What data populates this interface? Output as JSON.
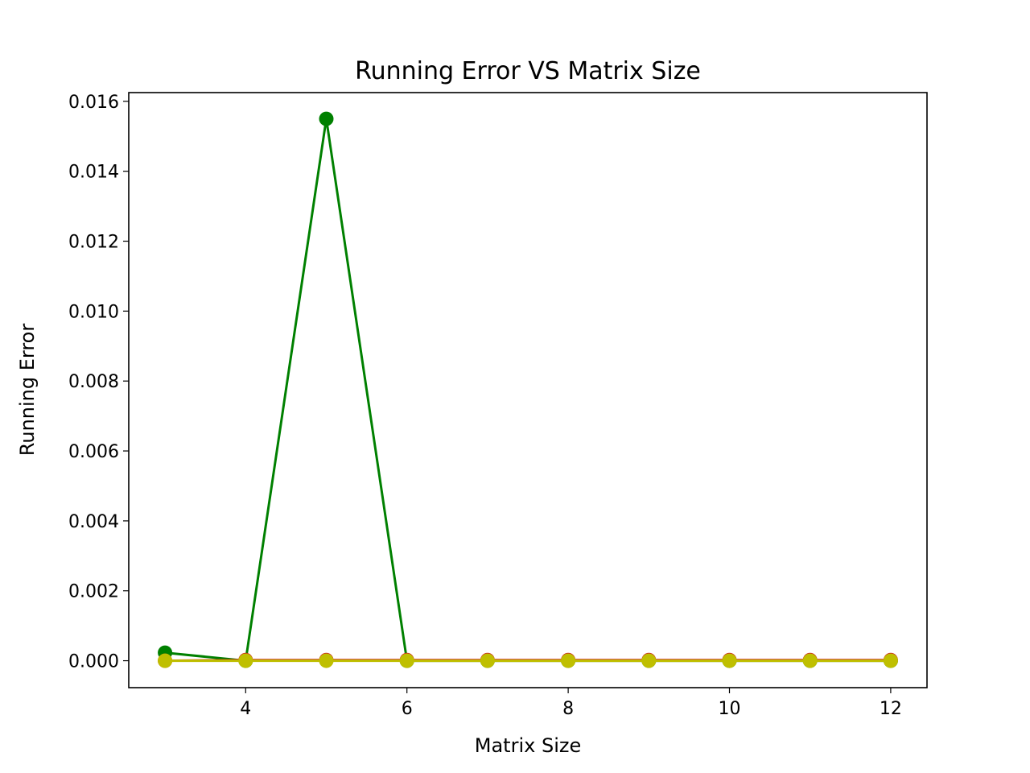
{
  "chart_data": {
    "type": "line",
    "title": "Running Error VS Matrix Size",
    "xlabel": "Matrix Size",
    "ylabel": "Running Error",
    "xlim": [
      2.55,
      12.45
    ],
    "ylim": [
      -0.00077,
      0.01625
    ],
    "xticks": [
      4,
      6,
      8,
      10,
      12
    ],
    "xtick_labels": [
      "4",
      "6",
      "8",
      "10",
      "12"
    ],
    "yticks": [
      0.0,
      0.002,
      0.004,
      0.006,
      0.008,
      0.01,
      0.012,
      0.014,
      0.016
    ],
    "ytick_labels": [
      "0.000",
      "0.002",
      "0.004",
      "0.006",
      "0.008",
      "0.010",
      "0.012",
      "0.014",
      "0.016"
    ],
    "grid": false,
    "legend": false,
    "x": [
      3,
      4,
      5,
      6,
      7,
      8,
      9,
      10,
      11,
      12
    ],
    "series": [
      {
        "color": "#008000",
        "marker": "circle",
        "values": [
          0.00023,
          0.0,
          0.0155,
          0.0,
          0.0,
          0.0,
          0.0,
          0.0,
          0.0,
          0.0
        ]
      },
      {
        "color": "#cc2a1a",
        "marker": "circle",
        "values": [
          0.0,
          2e-05,
          2e-05,
          2e-05,
          2e-05,
          2e-05,
          2e-05,
          2e-05,
          2e-05,
          2e-05
        ]
      },
      {
        "color": "#bfbf00",
        "marker": "circle",
        "values": [
          0.0,
          0.0,
          0.0,
          0.0,
          0.0,
          0.0,
          0.0,
          0.0,
          0.0,
          0.0
        ]
      }
    ]
  }
}
